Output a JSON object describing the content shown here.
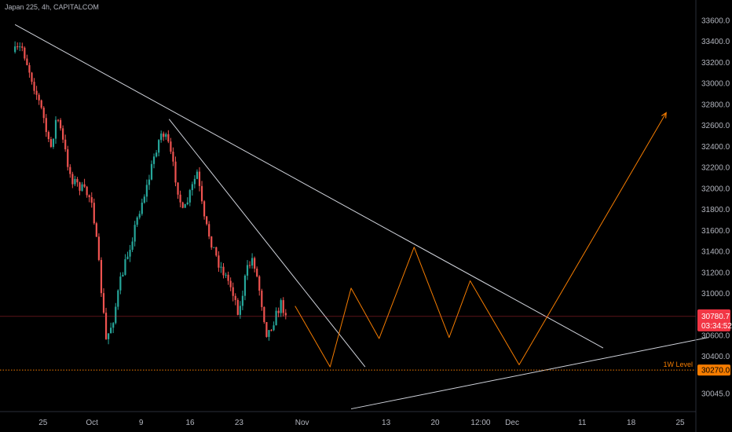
{
  "header": {
    "legend_text": "Japan 225, 4h, CAPITALCOM"
  },
  "colors": {
    "background": "#000000",
    "up": "#26a69a",
    "down": "#ef5350",
    "trendline": "#d1d4dc",
    "projection": "#f57c00",
    "level": "#f57c00",
    "price_badge": "#f23645",
    "axis_text": "#b2b5be"
  },
  "chart_data": {
    "type": "candlestick",
    "symbol": "Japan 225",
    "timeframe": "4h",
    "source": "CAPITALCOM",
    "y_axis": {
      "ticks": [
        33600,
        33400,
        33200,
        33000,
        32800,
        32600,
        32400,
        32200,
        32000,
        31800,
        31600,
        31400,
        31200,
        31000,
        30600,
        30400,
        30045
      ],
      "tick_labels": [
        "33600.0",
        "33400.0",
        "33200.0",
        "33000.0",
        "32800.0",
        "32600.0",
        "32400.0",
        "32200.0",
        "32000.0",
        "31800.0",
        "31600.0",
        "31400.0",
        "31200.0",
        "31000.0",
        "30600.0",
        "30400.0",
        "30045.0"
      ],
      "ylim": [
        29800,
        33700
      ],
      "position": "right"
    },
    "x_axis": {
      "start_date": "2023-09-21",
      "end_date": "2023-12-29",
      "ticks": [
        {
          "date": "2023-09-25",
          "label": "25"
        },
        {
          "date": "2023-10-02",
          "label": "Oct"
        },
        {
          "date": "2023-10-09",
          "label": "9"
        },
        {
          "date": "2023-10-16",
          "label": "16"
        },
        {
          "date": "2023-10-23",
          "label": "23"
        },
        {
          "date": "2023-11-01",
          "label": "Nov"
        },
        {
          "date": "2023-11-13",
          "label": "13"
        },
        {
          "date": "2023-11-20",
          "label": "20"
        },
        {
          "date": "2023-11-26T12:00",
          "label": "12:00"
        },
        {
          "date": "2023-12-01",
          "label": "Dec"
        },
        {
          "date": "2023-12-11",
          "label": "11"
        },
        {
          "date": "2023-12-18",
          "label": "18"
        },
        {
          "date": "2023-12-25",
          "label": "25"
        }
      ]
    },
    "price_path": [
      {
        "date": "2023-09-21",
        "price": 33300
      },
      {
        "date": "2023-09-22",
        "price": 33350
      },
      {
        "date": "2023-09-25",
        "price": 32700
      },
      {
        "date": "2023-09-26",
        "price": 32350
      },
      {
        "date": "2023-09-27",
        "price": 32700
      },
      {
        "date": "2023-09-28",
        "price": 32400
      },
      {
        "date": "2023-09-29",
        "price": 32100
      },
      {
        "date": "2023-10-02",
        "price": 31900
      },
      {
        "date": "2023-10-03",
        "price": 31250
      },
      {
        "date": "2023-10-04",
        "price": 30550
      },
      {
        "date": "2023-10-05",
        "price": 30750
      },
      {
        "date": "2023-10-06",
        "price": 31100
      },
      {
        "date": "2023-10-07",
        "price": 31350
      },
      {
        "date": "2023-10-09",
        "price": 31850
      },
      {
        "date": "2023-10-10",
        "price": 32050
      },
      {
        "date": "2023-10-11",
        "price": 32350
      },
      {
        "date": "2023-10-12",
        "price": 32550
      },
      {
        "date": "2023-10-13",
        "price": 32400
      },
      {
        "date": "2023-10-15",
        "price": 31750
      },
      {
        "date": "2023-10-16",
        "price": 31950
      },
      {
        "date": "2023-10-17",
        "price": 32150
      },
      {
        "date": "2023-10-18",
        "price": 31700
      },
      {
        "date": "2023-10-19",
        "price": 31500
      },
      {
        "date": "2023-10-20",
        "price": 31300
      },
      {
        "date": "2023-10-22",
        "price": 31050
      },
      {
        "date": "2023-10-23",
        "price": 30800
      },
      {
        "date": "2023-10-24",
        "price": 31200
      },
      {
        "date": "2023-10-25",
        "price": 31350
      },
      {
        "date": "2023-10-26",
        "price": 31000
      },
      {
        "date": "2023-10-27",
        "price": 30600
      },
      {
        "date": "2023-10-29",
        "price": 30900
      },
      {
        "date": "2023-10-30",
        "price": 30780
      }
    ],
    "last_price": {
      "value": 30780.7,
      "label": "30780.7",
      "countdown": "03:34:52"
    },
    "level": {
      "value": 30270,
      "label": "30270.0",
      "name": "1W Level"
    },
    "trendlines": [
      {
        "from": {
          "date": "2023-09-21",
          "price": 33560
        },
        "to": {
          "date": "2023-12-14",
          "price": 30480
        }
      },
      {
        "from": {
          "date": "2023-10-13",
          "price": 32660
        },
        "to": {
          "date": "2023-11-10",
          "price": 30300
        }
      },
      {
        "from": {
          "date": "2023-11-08",
          "price": 29900
        },
        "to": {
          "date": "2023-12-29",
          "price": 30580
        }
      }
    ],
    "projection": [
      {
        "date": "2023-10-31",
        "price": 30880
      },
      {
        "date": "2023-11-05",
        "price": 30300
      },
      {
        "date": "2023-11-08",
        "price": 31050
      },
      {
        "date": "2023-11-12",
        "price": 30570
      },
      {
        "date": "2023-11-17",
        "price": 31440
      },
      {
        "date": "2023-11-22",
        "price": 30580
      },
      {
        "date": "2023-11-25",
        "price": 31120
      },
      {
        "date": "2023-12-02",
        "price": 30320
      },
      {
        "date": "2023-12-23",
        "price": 32720
      }
    ]
  }
}
